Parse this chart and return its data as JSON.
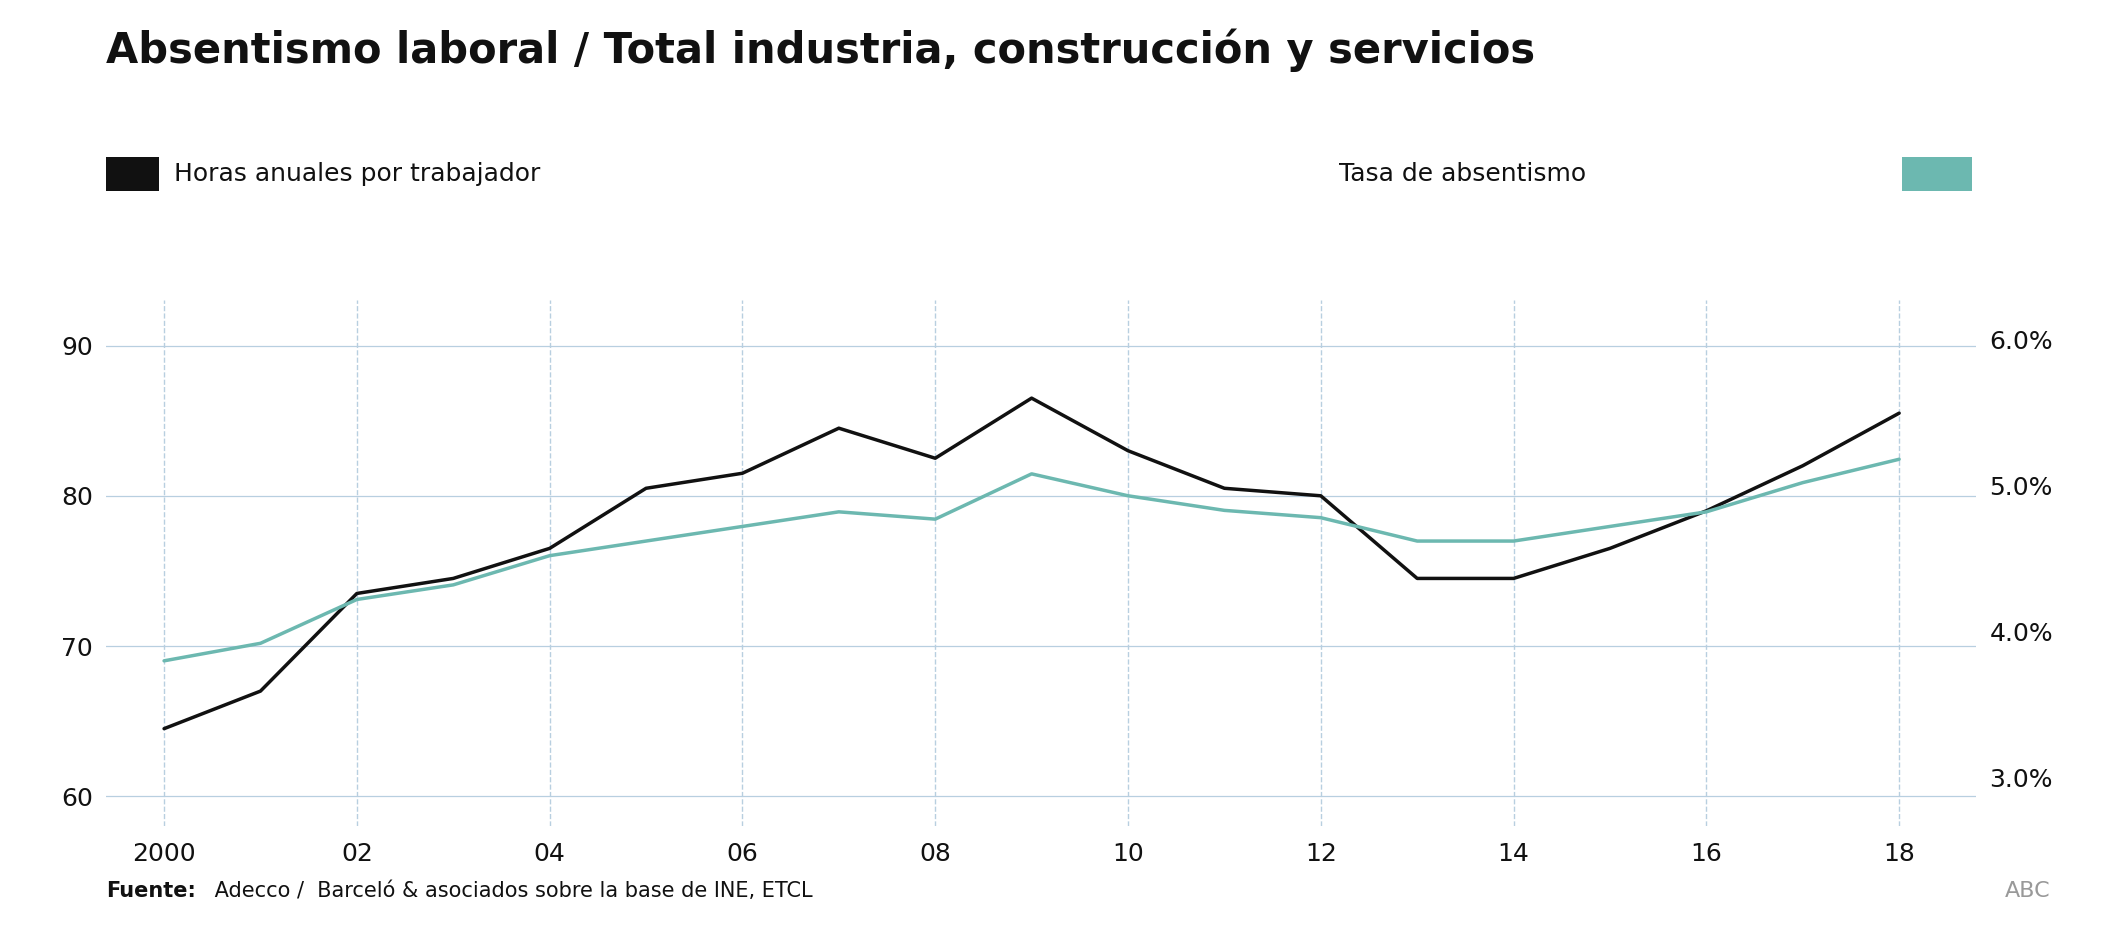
{
  "title": "Absentismo laboral / Total industria, construcción y servicios",
  "legend_left_label": "Horas anuales por trabajador",
  "legend_right_label": "Tasa de absentismo",
  "source_bold": "Fuente:",
  "source_rest": " Adecco /  Barceló & asociados sobre la base de INE, ETCL",
  "watermark": "ABC",
  "years": [
    2000,
    2001,
    2002,
    2003,
    2004,
    2005,
    2006,
    2007,
    2008,
    2009,
    2010,
    2011,
    2012,
    2013,
    2014,
    2015,
    2016,
    2017,
    2018
  ],
  "horas": [
    64.5,
    67.0,
    73.5,
    74.5,
    76.5,
    80.5,
    81.5,
    84.5,
    82.5,
    86.5,
    83.0,
    80.5,
    80.0,
    74.5,
    74.5,
    76.5,
    79.0,
    82.0,
    85.5
  ],
  "tasa": [
    3.8,
    3.92,
    4.22,
    4.32,
    4.52,
    4.62,
    4.72,
    4.82,
    4.77,
    5.08,
    4.93,
    4.83,
    4.78,
    4.62,
    4.62,
    4.72,
    4.82,
    5.02,
    5.18
  ],
  "ylim_left": [
    58,
    93
  ],
  "ylim_right": [
    2.667,
    6.267
  ],
  "yticks_left": [
    60,
    70,
    80,
    90
  ],
  "yticks_right": [
    3.0,
    4.0,
    5.0,
    6.0
  ],
  "xticks": [
    2000,
    2002,
    2004,
    2006,
    2008,
    2010,
    2012,
    2014,
    2016,
    2018
  ],
  "xtick_labels": [
    "2000",
    "02",
    "04",
    "06",
    "08",
    "10",
    "12",
    "14",
    "16",
    "18"
  ],
  "line_color_horas": "#111111",
  "line_color_tasa": "#6cb8b0",
  "line_width": 2.5,
  "grid_color": "#b8cfe0",
  "background_color": "#ffffff",
  "font_color": "#111111",
  "title_fontsize": 30,
  "legend_fontsize": 18,
  "tick_fontsize": 18,
  "source_fontsize": 15,
  "watermark_fontsize": 16,
  "watermark_color": "#999999"
}
